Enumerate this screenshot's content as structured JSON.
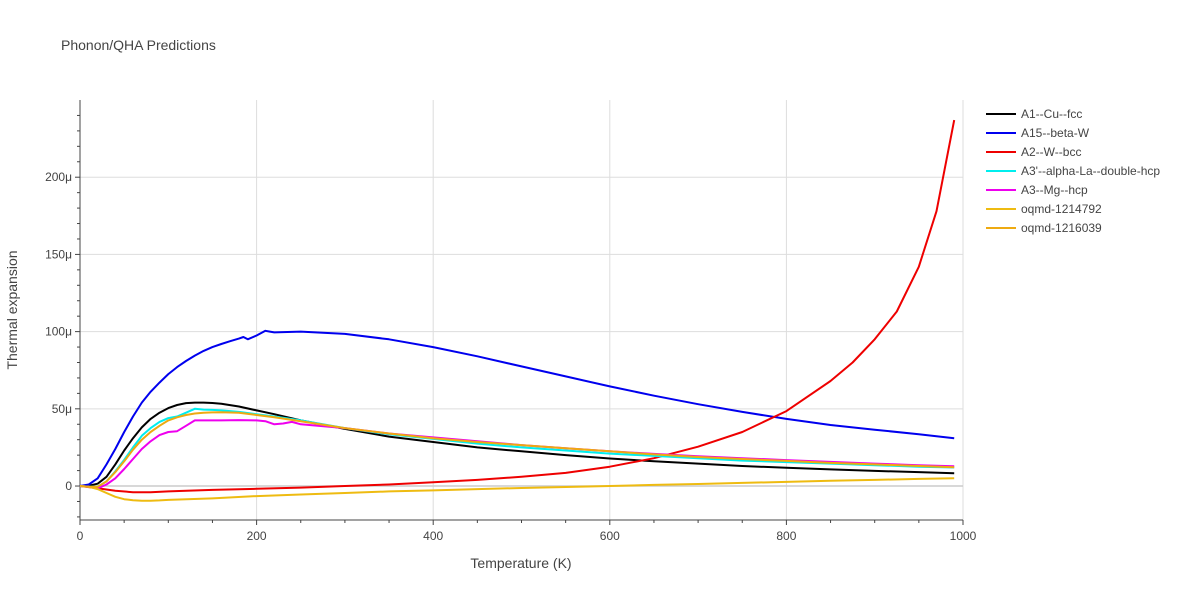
{
  "chart_data": {
    "type": "line",
    "title": "Phonon/QHA Predictions",
    "xlabel": "Temperature (K)",
    "ylabel": "Thermal expansion",
    "xlim": [
      0,
      1000
    ],
    "ylim": [
      -22,
      250
    ],
    "y_unit_suffix": "μ",
    "x_ticks": [
      0,
      200,
      400,
      600,
      800,
      1000
    ],
    "y_ticks": [
      0,
      50,
      100,
      150,
      200
    ],
    "y_tick_labels": [
      "0",
      "50μ",
      "100μ",
      "150μ",
      "200μ"
    ],
    "grid": true,
    "legend_position": "top-right",
    "series": [
      {
        "name": "A1--Cu--fcc",
        "color": "#000000",
        "x": [
          0,
          10,
          20,
          30,
          40,
          50,
          60,
          70,
          80,
          90,
          100,
          110,
          120,
          130,
          140,
          150,
          160,
          180,
          200,
          220,
          250,
          300,
          350,
          400,
          450,
          500,
          550,
          600,
          650,
          700,
          750,
          800,
          850,
          900,
          950,
          990
        ],
        "y": [
          0,
          0.2,
          1.5,
          6,
          14,
          23,
          31,
          38,
          43.5,
          47.5,
          50.5,
          52.5,
          53.7,
          54,
          54,
          53.8,
          53.3,
          51.5,
          49,
          46.5,
          42.5,
          37,
          32,
          28.5,
          25,
          22.5,
          20,
          17.8,
          16,
          14.5,
          13,
          11.8,
          10.8,
          9.8,
          9,
          8.3
        ]
      },
      {
        "name": "A15--beta-W",
        "color": "#0000ee",
        "x": [
          0,
          10,
          20,
          30,
          40,
          50,
          60,
          70,
          80,
          90,
          100,
          110,
          120,
          130,
          140,
          150,
          160,
          170,
          180,
          185,
          190,
          200,
          210,
          215,
          220,
          250,
          300,
          350,
          400,
          450,
          500,
          550,
          600,
          650,
          700,
          750,
          800,
          850,
          900,
          950,
          990
        ],
        "y": [
          0,
          1,
          5,
          14,
          24,
          35,
          45,
          54,
          61,
          67,
          72.5,
          77,
          81,
          84.5,
          87.5,
          90,
          92,
          93.8,
          95.5,
          96.5,
          95,
          97.5,
          100.5,
          100,
          99.5,
          100,
          98.5,
          95,
          90,
          84,
          77.5,
          71,
          64.5,
          58.5,
          53,
          48,
          43.5,
          39.5,
          36.5,
          33.5,
          31
        ]
      },
      {
        "name": "A2--W--bcc",
        "color": "#ee0000",
        "x": [
          0,
          20,
          40,
          60,
          80,
          100,
          150,
          200,
          250,
          300,
          350,
          400,
          450,
          500,
          550,
          600,
          650,
          700,
          750,
          800,
          850,
          875,
          900,
          925,
          950,
          970,
          990
        ],
        "y": [
          0,
          -1.5,
          -3,
          -4,
          -4,
          -3.5,
          -2.5,
          -1.8,
          -1,
          0,
          1,
          2.5,
          4,
          6,
          8.5,
          12.5,
          18,
          25.5,
          35,
          48.5,
          68,
          80,
          95,
          113,
          142,
          178,
          237
        ]
      },
      {
        "name": "A3'--alpha-La--double-hcp",
        "color": "#00eeee",
        "x": [
          0,
          10,
          20,
          30,
          40,
          50,
          60,
          70,
          80,
          90,
          100,
          110,
          120,
          130,
          140,
          150,
          160,
          180,
          200,
          220,
          250,
          300,
          350,
          400,
          450,
          500,
          550,
          600,
          650,
          700,
          750,
          800,
          850,
          900,
          950,
          990
        ],
        "y": [
          0,
          -0.5,
          -0.5,
          3,
          9.5,
          17,
          25,
          32.5,
          37.5,
          41.5,
          44,
          45,
          47.5,
          50,
          49.5,
          49.3,
          49,
          48,
          46.5,
          45,
          42.5,
          37.5,
          33.5,
          30.5,
          27.5,
          25,
          23,
          21,
          19.5,
          18,
          16.5,
          15.5,
          14.5,
          13.5,
          12.5,
          12
        ]
      },
      {
        "name": "A3--Mg--hcp",
        "color": "#ee00ee",
        "x": [
          0,
          10,
          20,
          30,
          40,
          50,
          60,
          70,
          80,
          90,
          100,
          110,
          120,
          130,
          140,
          150,
          160,
          180,
          200,
          210,
          220,
          230,
          240,
          250,
          300,
          350,
          400,
          450,
          500,
          550,
          600,
          650,
          700,
          750,
          800,
          850,
          900,
          950,
          990
        ],
        "y": [
          0,
          -0.5,
          -1.5,
          1,
          5,
          11,
          17.5,
          24,
          29,
          33,
          35,
          35.5,
          39,
          42.5,
          42.5,
          42.5,
          42.5,
          42.7,
          42.5,
          42,
          40,
          40.5,
          41.5,
          40,
          37.5,
          34,
          31.5,
          29,
          26.5,
          24.5,
          22.5,
          20.8,
          19.3,
          18,
          16.8,
          15.6,
          14.5,
          13.5,
          12.8
        ]
      },
      {
        "name": "oqmd-1214792",
        "color": "#eebb11",
        "x": [
          0,
          10,
          20,
          30,
          40,
          50,
          60,
          70,
          80,
          90,
          100,
          150,
          200,
          250,
          300,
          350,
          400,
          450,
          500,
          550,
          600,
          650,
          700,
          750,
          800,
          850,
          900,
          950,
          990
        ],
        "y": [
          0,
          -0.5,
          -2,
          -4.5,
          -7,
          -8.5,
          -9.2,
          -9.5,
          -9.5,
          -9.3,
          -9,
          -8,
          -6.5,
          -5.5,
          -4.5,
          -3.5,
          -2.8,
          -2,
          -1.3,
          -0.6,
          0,
          0.7,
          1.3,
          2,
          2.7,
          3.4,
          4,
          4.6,
          5
        ]
      },
      {
        "name": "oqmd-1216039",
        "color": "#eeaa11",
        "x": [
          0,
          10,
          20,
          30,
          40,
          50,
          60,
          70,
          80,
          90,
          100,
          110,
          120,
          130,
          140,
          150,
          160,
          180,
          200,
          220,
          250,
          300,
          350,
          400,
          450,
          500,
          550,
          600,
          650,
          700,
          750,
          800,
          850,
          900,
          950,
          990
        ],
        "y": [
          0,
          -0.5,
          -0.5,
          3,
          9,
          16,
          23.5,
          30,
          35,
          39,
          42.5,
          44.5,
          46,
          47,
          47.5,
          47.7,
          47.8,
          47.5,
          46,
          44.5,
          42,
          37.5,
          34,
          31,
          28.5,
          26.5,
          24.5,
          22.5,
          20.5,
          18.8,
          17.5,
          16.3,
          15,
          14,
          13,
          12.2
        ]
      }
    ]
  }
}
